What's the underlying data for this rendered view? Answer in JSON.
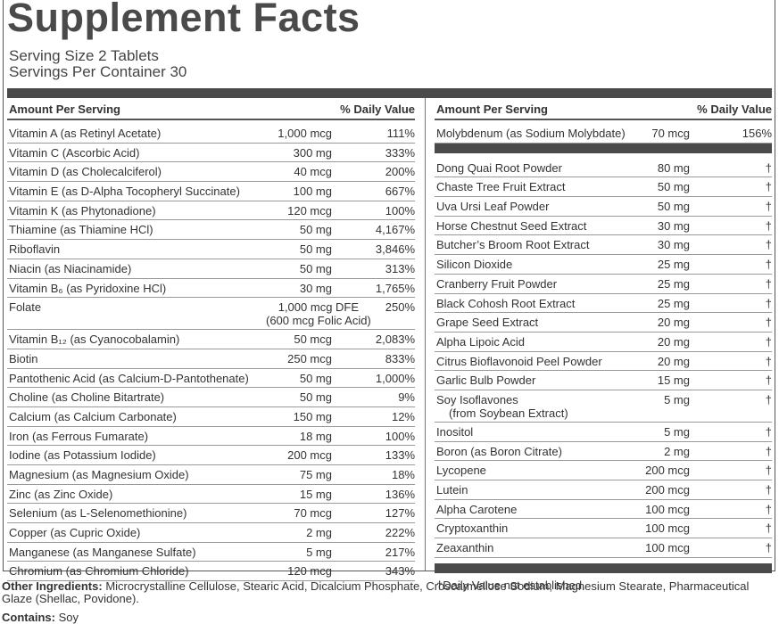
{
  "title": "Supplement Facts",
  "serving_size": "Serving Size 2 Tablets",
  "servings_per_container": "Servings Per Container 30",
  "left_table": {
    "headers": [
      "Amount Per Serving",
      "% Daily Value"
    ],
    "rows": [
      {
        "name": "Vitamin A (as Retinyl Acetate)",
        "amount": "1,000 mcg",
        "dv": "111%"
      },
      {
        "name": "Vitamin C (Ascorbic Acid)",
        "amount": "300 mg",
        "dv": "333%"
      },
      {
        "name": "Vitamin D (as Cholecalciferol)",
        "amount": "40 mcg",
        "dv": "200%"
      },
      {
        "name": "Vitamin E (as D-Alpha Tocopheryl Succinate)",
        "amount": "100 mg",
        "dv": "667%"
      },
      {
        "name": "Vitamin K (as Phytonadione)",
        "amount": "120 mcg",
        "dv": "100%"
      },
      {
        "name": "Thiamine (as Thiamine HCl)",
        "amount": "50 mg",
        "dv": "4,167%"
      },
      {
        "name": "Riboflavin",
        "amount": "50 mg",
        "dv": "3,846%"
      },
      {
        "name": "Niacin (as Niacinamide)",
        "amount": "50 mg",
        "dv": "313%"
      },
      {
        "name": "Vitamin B₆ (as Pyridoxine HCl)",
        "amount": "30 mg",
        "dv": "1,765%"
      },
      {
        "name": "Folate",
        "amount": "1,000 mcg DFE",
        "amount_note": "(600 mcg Folic Acid)",
        "dv": "250%"
      },
      {
        "name": "Vitamin B₁₂ (as Cyanocobalamin)",
        "amount": "50 mcg",
        "dv": "2,083%"
      },
      {
        "name": "Biotin",
        "amount": "250 mcg",
        "dv": "833%"
      },
      {
        "name": "Pantothenic Acid (as Calcium-D-Pantothenate)",
        "amount": "50 mg",
        "dv": "1,000%"
      },
      {
        "name": "Choline (as Choline Bitartrate)",
        "amount": "50 mg",
        "dv": "9%"
      },
      {
        "name": "Calcium (as Calcium Carbonate)",
        "amount": "150 mg",
        "dv": "12%"
      },
      {
        "name": "Iron (as Ferrous Fumarate)",
        "amount": "18 mg",
        "dv": "100%"
      },
      {
        "name": "Iodine (as Potassium Iodide)",
        "amount": "200 mcg",
        "dv": "133%"
      },
      {
        "name": "Magnesium (as Magnesium Oxide)",
        "amount": "75 mg",
        "dv": "18%"
      },
      {
        "name": "Zinc (as Zinc Oxide)",
        "amount": "15 mg",
        "dv": "136%"
      },
      {
        "name": "Selenium (as L-Selenomethionine)",
        "amount": "70 mcg",
        "dv": "127%"
      },
      {
        "name": "Copper (as Cupric Oxide)",
        "amount": "2 mg",
        "dv": "222%"
      },
      {
        "name": "Manganese (as Manganese Sulfate)",
        "amount": "5 mg",
        "dv": "217%"
      },
      {
        "name": "Chromium (as Chromium Chloride)",
        "amount": "120 mcg",
        "dv": "343%"
      }
    ]
  },
  "right_table": {
    "headers": [
      "Amount Per Serving",
      "% Daily Value"
    ],
    "top_rows": [
      {
        "name": "Molybdenum (as Sodium Molybdate)",
        "amount": "70 mcg",
        "dv": "156%"
      }
    ],
    "rows": [
      {
        "name": "Dong Quai Root Powder",
        "amount": "80 mg",
        "dv": "†"
      },
      {
        "name": "Chaste Tree Fruit Extract",
        "amount": "50 mg",
        "dv": "†"
      },
      {
        "name": "Uva Ursi Leaf Powder",
        "amount": "50 mg",
        "dv": "†"
      },
      {
        "name": "Horse Chestnut Seed Extract",
        "amount": "30 mg",
        "dv": "†"
      },
      {
        "name": "Butcher’s Broom Root Extract",
        "amount": "30 mg",
        "dv": "†"
      },
      {
        "name": "Silicon Dioxide",
        "amount": "25 mg",
        "dv": "†"
      },
      {
        "name": "Cranberry Fruit Powder",
        "amount": "25 mg",
        "dv": "†"
      },
      {
        "name": "Black Cohosh Root Extract",
        "amount": "25 mg",
        "dv": "†"
      },
      {
        "name": "Grape Seed Extract",
        "amount": "20 mg",
        "dv": "†"
      },
      {
        "name": "Alpha Lipoic Acid",
        "amount": "20 mg",
        "dv": "†"
      },
      {
        "name": "Citrus Bioflavonoid Peel Powder",
        "amount": "20 mg",
        "dv": "†"
      },
      {
        "name": "Garlic Bulb Powder",
        "amount": "15 mg",
        "dv": "†"
      },
      {
        "name": "Soy Isoflavones",
        "name_note": "(from Soybean Extract)",
        "amount": "5 mg",
        "dv": "†"
      },
      {
        "name": "Inositol",
        "amount": "5 mg",
        "dv": "†"
      },
      {
        "name": "Boron (as Boron Citrate)",
        "amount": "2 mg",
        "dv": "†"
      },
      {
        "name": "Lycopene",
        "amount": "200 mcg",
        "dv": "†"
      },
      {
        "name": "Lutein",
        "amount": "200 mcg",
        "dv": "†"
      },
      {
        "name": "Alpha Carotene",
        "amount": "100 mcg",
        "dv": "†"
      },
      {
        "name": "Cryptoxanthin",
        "amount": "100 mcg",
        "dv": "†"
      },
      {
        "name": "Zeaxanthin",
        "amount": "100 mcg",
        "dv": "†"
      }
    ],
    "footnote": "†Daily Value not established."
  },
  "other_ingredients": {
    "label": "Other Ingredients:",
    "text": "Microcrystalline Cellulose, Stearic Acid, Dicalcium Phosphate, Croscarmellose Sodium, Magnesium Stearate, Pharmaceutical Glaze (Shellac, Povidone)."
  },
  "contains": {
    "label": "Contains:",
    "text": "Soy"
  }
}
